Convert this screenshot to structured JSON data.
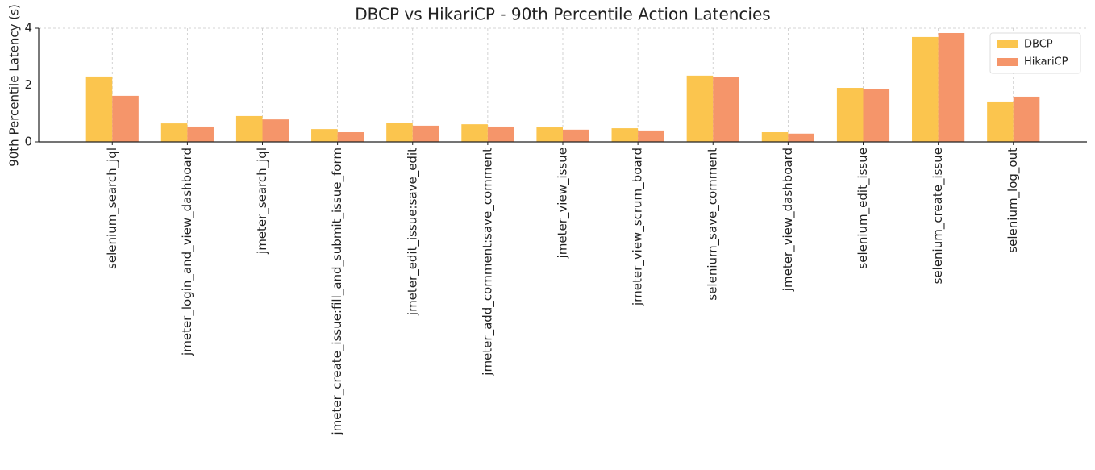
{
  "chart_data": {
    "type": "bar",
    "title": "DBCP vs HikariCP - 90th Percentile Action Latencies",
    "y_label": "90th Percentile Latency (s)",
    "categories": [
      "selenium_search_jql",
      "jmeter_login_and_view_dashboard",
      "jmeter_search_jql",
      "jmeter_create_issue:fill_and_submit_issue_form",
      "jmeter_edit_issue:save_edit",
      "jmeter_add_comment:save_comment",
      "jmeter_view_issue",
      "jmeter_view_scrum_board",
      "selenium_save_comment",
      "jmeter_view_dashboard",
      "selenium_edit_issue",
      "selenium_create_issue",
      "selenium_log_out"
    ],
    "series": [
      {
        "name": "DBCP",
        "color": "#fbc54e",
        "values": [
          2.3,
          0.65,
          0.91,
          0.45,
          0.68,
          0.62,
          0.51,
          0.48,
          2.33,
          0.34,
          1.9,
          3.69,
          1.42
        ]
      },
      {
        "name": "HikariCP",
        "color": "#f5956a",
        "values": [
          1.62,
          0.54,
          0.79,
          0.34,
          0.57,
          0.54,
          0.43,
          0.4,
          2.27,
          0.29,
          1.87,
          3.83,
          1.59
        ]
      }
    ],
    "ylim": [
      0,
      4
    ],
    "yticks": [
      0,
      2,
      4
    ],
    "grid": true,
    "legend": "upper-right"
  }
}
